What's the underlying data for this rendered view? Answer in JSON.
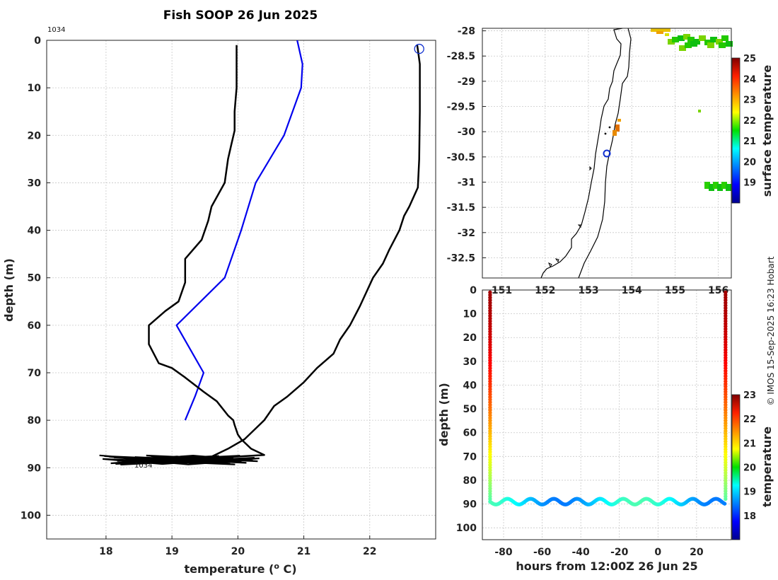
{
  "chart_data": [
    {
      "type": "line",
      "id": "profile",
      "title": "Fish SOOP 26 Jun 2025",
      "xlabel": "temperature (",
      "xlabel_sup": "o",
      "xlabel_end": " C)",
      "ylabel": "depth (m)",
      "xlim": [
        17.1,
        23.0
      ],
      "ylim": [
        105,
        0
      ],
      "xticks": [
        18,
        19,
        20,
        21,
        22
      ],
      "yticks": [
        0,
        10,
        20,
        30,
        40,
        50,
        60,
        70,
        80,
        90,
        100
      ],
      "annotation_top": "1034",
      "annotation_bottom": "1034",
      "marker_circle": {
        "x": 22.75,
        "y": 1.8
      },
      "series": [
        {
          "name": "reference",
          "color": "#0000ee",
          "points": [
            [
              20.9,
              0
            ],
            [
              20.98,
              5
            ],
            [
              20.96,
              10
            ],
            [
              20.7,
              20
            ],
            [
              20.27,
              30
            ],
            [
              20.05,
              40
            ],
            [
              19.8,
              50
            ],
            [
              19.07,
              60
            ],
            [
              19.48,
              70
            ],
            [
              19.35,
              75
            ],
            [
              19.2,
              80
            ]
          ]
        },
        {
          "name": "descent",
          "color": "#000000",
          "points": [
            [
              22.72,
              1
            ],
            [
              22.76,
              5
            ],
            [
              22.76,
              15
            ],
            [
              22.75,
              25
            ],
            [
              22.73,
              31
            ],
            [
              22.6,
              35
            ],
            [
              22.52,
              37
            ],
            [
              22.45,
              40
            ],
            [
              22.3,
              44
            ],
            [
              22.2,
              47
            ],
            [
              22.05,
              50
            ],
            [
              21.95,
              53
            ],
            [
              21.85,
              56
            ],
            [
              21.7,
              60
            ],
            [
              21.55,
              63
            ],
            [
              21.45,
              66
            ],
            [
              21.2,
              69
            ],
            [
              21.0,
              72
            ],
            [
              20.75,
              75
            ],
            [
              20.55,
              77
            ],
            [
              20.4,
              80
            ],
            [
              20.25,
              82
            ],
            [
              20.1,
              84
            ],
            [
              19.85,
              86
            ],
            [
              19.7,
              87
            ],
            [
              19.55,
              88
            ],
            [
              19.2,
              88.3
            ],
            [
              18.9,
              88.5
            ],
            [
              18.5,
              88.6
            ]
          ]
        },
        {
          "name": "ascent",
          "color": "#000000",
          "points": [
            [
              18.6,
              88.8
            ],
            [
              19.2,
              88.5
            ],
            [
              19.8,
              87.8
            ],
            [
              20.4,
              87.3
            ],
            [
              20.2,
              86
            ],
            [
              20.05,
              84
            ],
            [
              20.0,
              83
            ],
            [
              19.95,
              81
            ],
            [
              19.93,
              80
            ],
            [
              19.85,
              79
            ],
            [
              19.68,
              76
            ],
            [
              19.48,
              74
            ],
            [
              19.2,
              71
            ],
            [
              19.0,
              69
            ],
            [
              18.8,
              68
            ],
            [
              18.65,
              64
            ],
            [
              18.65,
              60
            ],
            [
              18.9,
              57
            ],
            [
              19.1,
              55
            ],
            [
              19.2,
              51
            ],
            [
              19.2,
              46
            ],
            [
              19.45,
              42
            ],
            [
              19.55,
              38
            ],
            [
              19.6,
              35
            ],
            [
              19.8,
              30
            ],
            [
              19.85,
              25
            ],
            [
              19.9,
              22
            ],
            [
              19.95,
              19
            ],
            [
              19.95,
              15
            ],
            [
              19.98,
              10
            ],
            [
              19.98,
              5
            ],
            [
              19.98,
              1
            ]
          ]
        }
      ]
    },
    {
      "type": "map",
      "id": "map",
      "colorbar_label": "surface temperature",
      "colorbar_range": [
        18,
        25
      ],
      "colorbar_ticks": [
        19,
        20,
        21,
        22,
        23,
        24,
        25
      ],
      "lat_ticks": [
        "-28",
        "-28.5",
        "-29",
        "-29.5",
        "-30",
        "-30.5",
        "-31",
        "-31.5",
        "-32",
        "-32.5"
      ],
      "lon_ticks": [
        "151",
        "152",
        "153",
        "154",
        "155",
        "156"
      ],
      "position_marker": {
        "lon": 153.3,
        "lat": -30.4
      }
    },
    {
      "type": "scatter",
      "id": "timeseries",
      "xlabel": "hours from 12:00Z 26 Jun 25",
      "ylabel": "depth (m)",
      "xlim": [
        -91,
        38
      ],
      "ylim": [
        105,
        0
      ],
      "xticks": [
        -80,
        -60,
        -40,
        -20,
        0,
        20
      ],
      "yticks": [
        0,
        10,
        20,
        30,
        40,
        50,
        60,
        70,
        80,
        90,
        100
      ],
      "colorbar_label": "temperature",
      "colorbar_range": [
        17,
        23
      ],
      "colorbar_ticks": [
        18,
        19,
        20,
        21,
        22,
        23
      ],
      "cast_times": [
        -87,
        35
      ],
      "cast_surface_temp": 22.8,
      "cast_bottom_temp": 19.8,
      "oscillation": {
        "mean_depth": 89,
        "amplitude": 1.2,
        "period_h": 12,
        "temps_low_high": [
          17.8,
          19.7
        ]
      }
    }
  ],
  "footer": {
    "credit": "© IMOS 15-Sep-2025 16:23 Hobart"
  }
}
